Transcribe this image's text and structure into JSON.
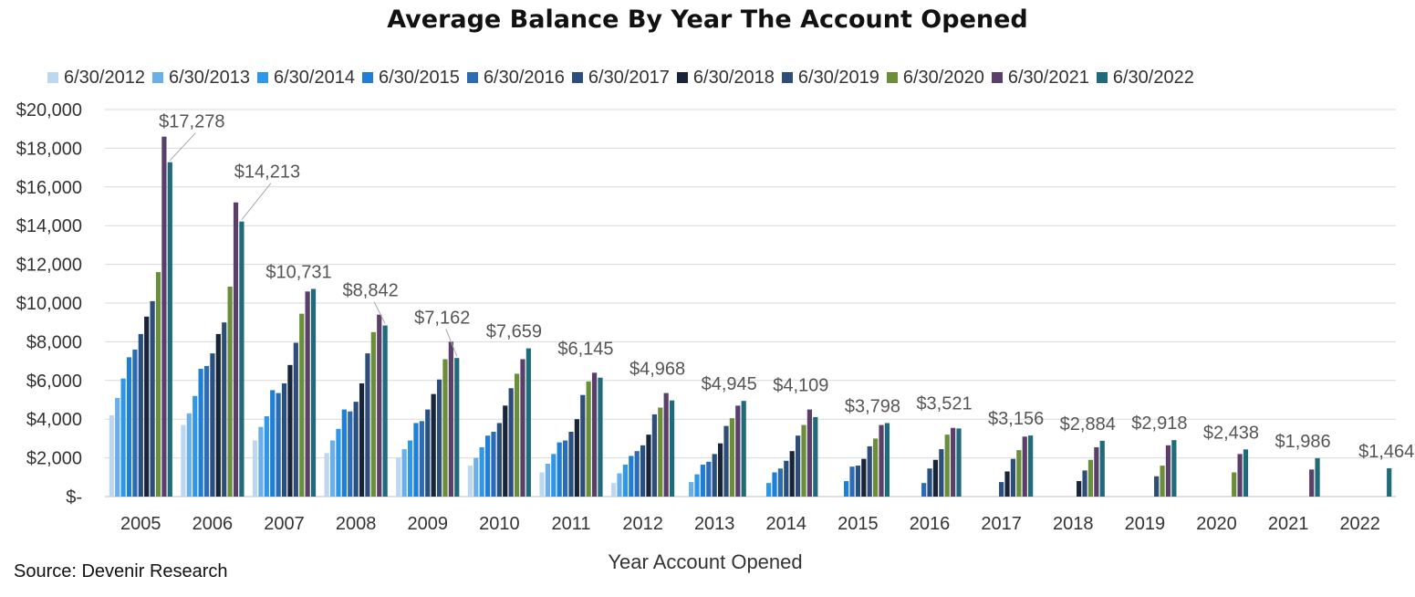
{
  "chart_data": {
    "type": "bar",
    "title": "Average Balance By Year The Account Opened",
    "xlabel": "Year Account Opened",
    "ylabel": "",
    "ylim": [
      0,
      20000
    ],
    "yticks": [
      {
        "value": 0,
        "label": "$-"
      },
      {
        "value": 2000,
        "label": "$2,000"
      },
      {
        "value": 4000,
        "label": "$4,000"
      },
      {
        "value": 6000,
        "label": "$6,000"
      },
      {
        "value": 8000,
        "label": "$8,000"
      },
      {
        "value": 10000,
        "label": "$10,000"
      },
      {
        "value": 12000,
        "label": "$12,000"
      },
      {
        "value": 14000,
        "label": "$14,000"
      },
      {
        "value": 16000,
        "label": "$16,000"
      },
      {
        "value": 18000,
        "label": "$18,000"
      },
      {
        "value": 20000,
        "label": "$20,000"
      }
    ],
    "grid": true,
    "legend_position": "top",
    "categories": [
      "2005",
      "2006",
      "2007",
      "2008",
      "2009",
      "2010",
      "2011",
      "2012",
      "2013",
      "2014",
      "2015",
      "2016",
      "2017",
      "2018",
      "2019",
      "2020",
      "2021",
      "2022"
    ],
    "series": [
      {
        "name": "6/30/2012",
        "color": "#bdd7ee",
        "values": [
          4200,
          3700,
          2900,
          2250,
          2000,
          1600,
          1250,
          700,
          null,
          null,
          null,
          null,
          null,
          null,
          null,
          null,
          null,
          null
        ]
      },
      {
        "name": "6/30/2013",
        "color": "#6aaeea",
        "values": [
          5100,
          4300,
          3600,
          2900,
          2450,
          2000,
          1700,
          1200,
          750,
          null,
          null,
          null,
          null,
          null,
          null,
          null,
          null,
          null
        ]
      },
      {
        "name": "6/30/2014",
        "color": "#2f97e8",
        "values": [
          6100,
          5200,
          4150,
          3500,
          2900,
          2550,
          2200,
          1650,
          1150,
          700,
          null,
          null,
          null,
          null,
          null,
          null,
          null,
          null
        ]
      },
      {
        "name": "6/30/2015",
        "color": "#1f7fd6",
        "values": [
          7200,
          6600,
          5500,
          4500,
          3800,
          3150,
          2800,
          2100,
          1650,
          1250,
          800,
          null,
          null,
          null,
          null,
          null,
          null,
          null
        ]
      },
      {
        "name": "6/30/2016",
        "color": "#2b6cb5",
        "values": [
          7600,
          6750,
          5350,
          4400,
          3900,
          3350,
          2900,
          2350,
          1800,
          1450,
          1550,
          700,
          null,
          null,
          null,
          null,
          null,
          null
        ]
      },
      {
        "name": "6/30/2017",
        "color": "#284f80",
        "values": [
          8400,
          7400,
          5850,
          4900,
          4500,
          3800,
          3350,
          2650,
          2200,
          1850,
          1600,
          1450,
          750,
          null,
          null,
          null,
          null,
          null
        ]
      },
      {
        "name": "6/30/2018",
        "color": "#17243a",
        "values": [
          9300,
          8400,
          6800,
          5850,
          5300,
          4700,
          4000,
          3200,
          2750,
          2350,
          1950,
          1900,
          1300,
          800,
          null,
          null,
          null,
          null
        ]
      },
      {
        "name": "6/30/2019",
        "color": "#2e4d78",
        "values": [
          10100,
          9000,
          7950,
          7400,
          6050,
          5600,
          5250,
          4250,
          3650,
          3150,
          2600,
          2450,
          1950,
          1350,
          1050,
          null,
          null,
          null
        ]
      },
      {
        "name": "6/30/2020",
        "color": "#6b8e3a",
        "values": [
          11600,
          10850,
          9450,
          8500,
          7100,
          6350,
          5950,
          4600,
          4050,
          3700,
          3000,
          3200,
          2400,
          1900,
          1600,
          1250,
          null,
          null
        ]
      },
      {
        "name": "6/30/2021",
        "color": "#5a3f6b",
        "values": [
          18600,
          15200,
          10600,
          9400,
          8000,
          7100,
          6400,
          5350,
          4700,
          4500,
          3700,
          3550,
          3100,
          2550,
          2650,
          2200,
          1400,
          null
        ]
      },
      {
        "name": "6/30/2022",
        "color": "#1f6b7a",
        "values": [
          17278,
          14213,
          10731,
          8842,
          7162,
          7659,
          6145,
          4968,
          4945,
          4109,
          3798,
          3521,
          3156,
          2884,
          2918,
          2438,
          1986,
          1464
        ]
      }
    ],
    "data_labels": [
      "$17,278",
      "$14,213",
      "$10,731",
      "$8,842",
      "$7,162",
      "$7,659",
      "$6,145",
      "$4,968",
      "$4,945",
      "$4,109",
      "$3,798",
      "$3,521",
      "$3,156",
      "$2,884",
      "$2,918",
      "$2,438",
      "$1,986",
      "$1,464"
    ],
    "source": "Source: Devenir Research"
  }
}
